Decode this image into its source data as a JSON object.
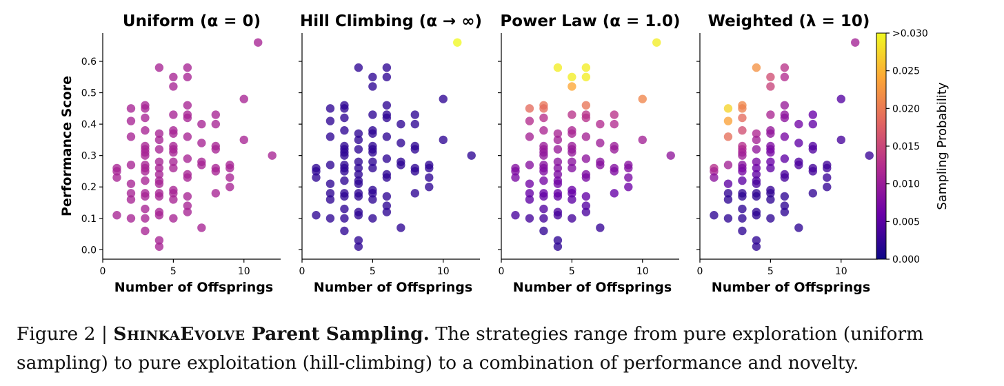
{
  "figure": {
    "caption_label": "Figure 2 | ",
    "caption_name": "ShinkaEvolve",
    "caption_bold": " Parent Sampling.",
    "caption_text": " The strategies range from pure exploration (uniform sampling) to pure exploitation (hill-climbing) to a combination of performance and novelty."
  },
  "chart_data": {
    "type": "scatter",
    "ylabel": "Performance Score",
    "xlabel": "Number of Offsprings",
    "xlim": [
      0,
      12.6
    ],
    "ylim": [
      -0.03,
      0.69
    ],
    "xticks": [
      0,
      5,
      10
    ],
    "yticks": [
      0.0,
      0.1,
      0.2,
      0.3,
      0.4,
      0.5,
      0.6
    ],
    "colormap": "plasma",
    "colormap_colors": [
      "#0d0887",
      "#6a00a8",
      "#b12a90",
      "#e16462",
      "#fca636",
      "#f0f921"
    ],
    "colorbar": {
      "label": "Sampling Probability",
      "ticks": [
        "0.000",
        "0.005",
        "0.010",
        "0.015",
        "0.020",
        "0.025",
        ">0.030"
      ],
      "range": [
        0,
        0.03
      ]
    },
    "points": [
      [
        1,
        0.26
      ],
      [
        1,
        0.25
      ],
      [
        1,
        0.23
      ],
      [
        1,
        0.11
      ],
      [
        2,
        0.45
      ],
      [
        2,
        0.41
      ],
      [
        2,
        0.36
      ],
      [
        2,
        0.27
      ],
      [
        2,
        0.21
      ],
      [
        2,
        0.18
      ],
      [
        2,
        0.16
      ],
      [
        2,
        0.1
      ],
      [
        3,
        0.46
      ],
      [
        3,
        0.45
      ],
      [
        3,
        0.42
      ],
      [
        3,
        0.38
      ],
      [
        3,
        0.33
      ],
      [
        3,
        0.32
      ],
      [
        3,
        0.31
      ],
      [
        3,
        0.3
      ],
      [
        3,
        0.27
      ],
      [
        3,
        0.26
      ],
      [
        3,
        0.25
      ],
      [
        3,
        0.22
      ],
      [
        3,
        0.18
      ],
      [
        3,
        0.17
      ],
      [
        3,
        0.13
      ],
      [
        3,
        0.1
      ],
      [
        3,
        0.06
      ],
      [
        4,
        0.58
      ],
      [
        4,
        0.37
      ],
      [
        4,
        0.35
      ],
      [
        4,
        0.32
      ],
      [
        4,
        0.28
      ],
      [
        4,
        0.26
      ],
      [
        4,
        0.24
      ],
      [
        4,
        0.22
      ],
      [
        4,
        0.21
      ],
      [
        4,
        0.18
      ],
      [
        4,
        0.17
      ],
      [
        4,
        0.12
      ],
      [
        4,
        0.11
      ],
      [
        4,
        0.03
      ],
      [
        4,
        0.01
      ],
      [
        5,
        0.55
      ],
      [
        5,
        0.52
      ],
      [
        5,
        0.43
      ],
      [
        5,
        0.38
      ],
      [
        5,
        0.37
      ],
      [
        5,
        0.33
      ],
      [
        5,
        0.32
      ],
      [
        5,
        0.31
      ],
      [
        5,
        0.28
      ],
      [
        5,
        0.26
      ],
      [
        5,
        0.19
      ],
      [
        5,
        0.18
      ],
      [
        5,
        0.16
      ],
      [
        5,
        0.1
      ],
      [
        6,
        0.58
      ],
      [
        6,
        0.55
      ],
      [
        6,
        0.46
      ],
      [
        6,
        0.43
      ],
      [
        6,
        0.42
      ],
      [
        6,
        0.36
      ],
      [
        6,
        0.29
      ],
      [
        6,
        0.24
      ],
      [
        6,
        0.23
      ],
      [
        6,
        0.17
      ],
      [
        6,
        0.14
      ],
      [
        6,
        0.12
      ],
      [
        7,
        0.4
      ],
      [
        7,
        0.34
      ],
      [
        7,
        0.28
      ],
      [
        7,
        0.27
      ],
      [
        7,
        0.07
      ],
      [
        8,
        0.43
      ],
      [
        8,
        0.4
      ],
      [
        8,
        0.33
      ],
      [
        8,
        0.32
      ],
      [
        8,
        0.26
      ],
      [
        8,
        0.25
      ],
      [
        8,
        0.18
      ],
      [
        9,
        0.27
      ],
      [
        9,
        0.26
      ],
      [
        9,
        0.23
      ],
      [
        9,
        0.2
      ],
      [
        10,
        0.48
      ],
      [
        10,
        0.35
      ],
      [
        11,
        0.66
      ],
      [
        12,
        0.3
      ]
    ],
    "panels": [
      {
        "title": "Uniform (α = 0)",
        "mode": "uniform"
      },
      {
        "title": "Hill Climbing (α → ∞)",
        "mode": "hill"
      },
      {
        "title": "Power Law (α = 1.0)",
        "mode": "power"
      },
      {
        "title": "Weighted (λ = 10)",
        "mode": "weighted"
      }
    ]
  }
}
